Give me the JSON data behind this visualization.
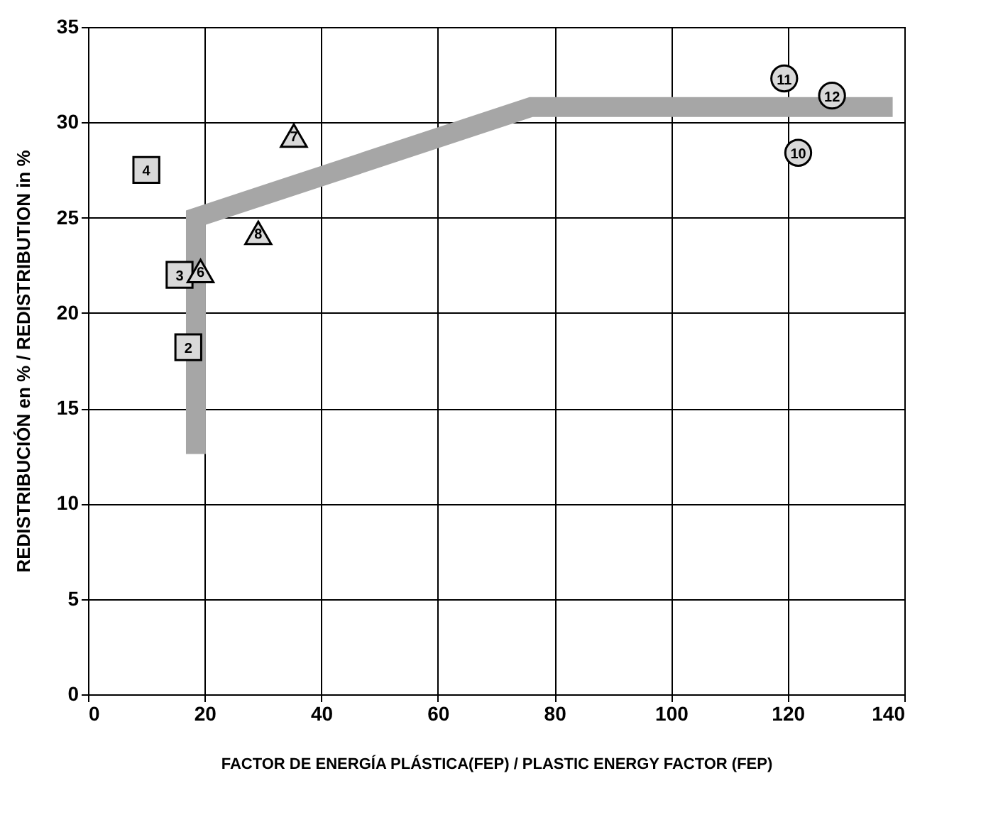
{
  "chart_data": {
    "type": "scatter",
    "xlabel": "FACTOR DE ENERGÍA PLÁSTICA(FEP) / PLASTIC ENERGY FACTOR (FEP)",
    "ylabel": "REDISTRIBUCIÓN en % / REDISTRIBUTION in %",
    "xlim": [
      0,
      140
    ],
    "xticks": [
      0,
      20,
      40,
      60,
      80,
      100,
      120,
      140
    ],
    "ylim": [
      0,
      35
    ],
    "yticks": [
      0,
      5,
      10,
      15,
      20,
      25,
      30,
      35
    ],
    "grid": true,
    "series": [
      {
        "type": "line",
        "color": "#a6a6a6",
        "marker": "none",
        "line_style": "solid",
        "x": [
          18.5,
          18.5,
          76,
          138
        ],
        "values": [
          12.6,
          25,
          30.8,
          30.8
        ]
      },
      {
        "color": "#d9d9d9",
        "marker": "square",
        "x": [
          17.2,
          15.7,
          10
        ],
        "values": [
          18.2,
          22,
          27.5
        ]
      },
      {
        "color": "#d9d9d9",
        "marker": "triangle",
        "x": [
          19.3,
          35.3,
          29.2
        ],
        "values": [
          22.2,
          29.3,
          24.2
        ]
      },
      {
        "color": "#d9d9d9",
        "marker": "circle",
        "x": [
          121.8,
          119.4,
          127.6
        ],
        "values": [
          28.4,
          32.3,
          31.4
        ]
      }
    ],
    "annotations": [
      {
        "text": "2",
        "x": 17.2,
        "y": 18.2
      },
      {
        "text": "3",
        "x": 15.7,
        "y": 22
      },
      {
        "text": "4",
        "x": 10,
        "y": 27.5
      },
      {
        "text": "6",
        "x": 19.3,
        "y": 22.2
      },
      {
        "text": "7",
        "x": 35.3,
        "y": 29.3
      },
      {
        "text": "8",
        "x": 29.2,
        "y": 24.2
      },
      {
        "text": "10",
        "x": 121.8,
        "y": 28.4
      },
      {
        "text": "11",
        "x": 119.4,
        "y": 32.3
      },
      {
        "text": "12",
        "x": 127.6,
        "y": 31.4
      }
    ]
  }
}
